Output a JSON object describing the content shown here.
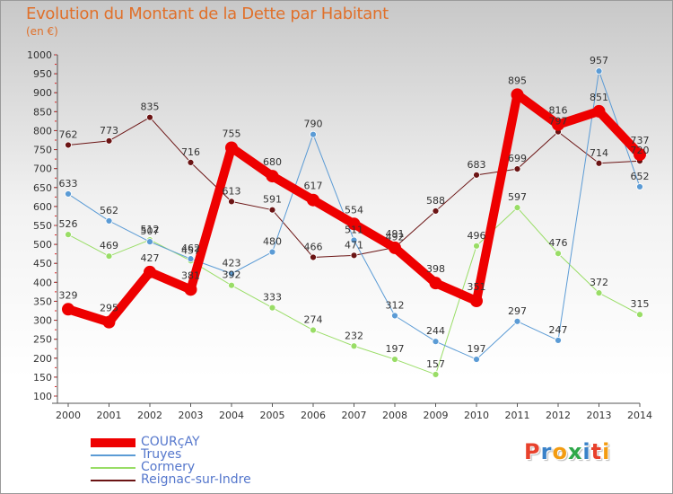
{
  "header": {
    "title": "Evolution du Montant de la Dette par Habitant",
    "unit": "(en €)"
  },
  "logo": {
    "text": "Proxiti",
    "letters": [
      {
        "ch": "P",
        "color": "#e8412c"
      },
      {
        "ch": "r",
        "color": "#3a82c9"
      },
      {
        "ch": "o",
        "color": "#f39c12"
      },
      {
        "ch": "x",
        "color": "#2ea84a"
      },
      {
        "ch": "i",
        "color": "#3a82c9"
      },
      {
        "ch": "t",
        "color": "#e8412c"
      },
      {
        "ch": "i",
        "color": "#f39c12"
      }
    ]
  },
  "chart_data": {
    "type": "line",
    "title": "Evolution du Montant de la Dette par Habitant",
    "ylabel": "(en €)",
    "xlabel": "",
    "x": [
      "2000",
      "2001",
      "2002",
      "2003",
      "2004",
      "2005",
      "2006",
      "2007",
      "2008",
      "2009",
      "2010",
      "2011",
      "2012",
      "2013",
      "2014"
    ],
    "ylim": [
      100,
      1000
    ],
    "yticks": [
      100,
      150,
      200,
      250,
      300,
      350,
      400,
      450,
      500,
      550,
      600,
      650,
      700,
      750,
      800,
      850,
      900,
      950,
      1000
    ],
    "grid": false,
    "legend_position": "bottom-left",
    "series": [
      {
        "name": "Reignac-sur-Indre",
        "color": "#6b1414",
        "width": 1,
        "marker": 3.5,
        "values": [
          762,
          773,
          835,
          716,
          613,
          591,
          466,
          471,
          492,
          588,
          683,
          699,
          797,
          714,
          720
        ],
        "labels": [
          "762",
          "773",
          "835",
          "716",
          "613",
          "591",
          "466",
          "471",
          "492",
          "588",
          "683",
          "699",
          "797",
          "714",
          "720"
        ]
      },
      {
        "name": "Cormery",
        "color": "#99dd66",
        "width": 1,
        "marker": 3.5,
        "values": [
          526,
          469,
          512,
          457,
          392,
          333,
          274,
          232,
          197,
          157,
          496,
          597,
          476,
          372,
          315
        ],
        "labels": [
          "526",
          "469",
          "512",
          "457",
          "392",
          "333",
          "274",
          "232",
          "197",
          "157",
          "496",
          "597",
          "476",
          "372",
          "315"
        ]
      },
      {
        "name": "Truyes",
        "color": "#5b9bd5",
        "width": 1,
        "marker": 3.5,
        "values": [
          633,
          562,
          507,
          462,
          423,
          480,
          790,
          511,
          312,
          244,
          197,
          297,
          247,
          957,
          652
        ],
        "labels": [
          "633",
          "562",
          "507",
          "462",
          "423",
          "480",
          "790",
          "511",
          "312",
          "244",
          "197",
          "297",
          "247",
          "957",
          "652"
        ]
      },
      {
        "name": "COURçAY",
        "color": "#ee0000",
        "width": 10,
        "marker": 7,
        "values": [
          329,
          295,
          427,
          381,
          755,
          680,
          617,
          554,
          491,
          398,
          351,
          895,
          816,
          851,
          737
        ],
        "labels": [
          "329",
          "295",
          "427",
          "381",
          "755",
          "680",
          "617",
          "554",
          "491",
          "398",
          "351",
          "895",
          "816",
          "851",
          "737"
        ]
      }
    ]
  }
}
